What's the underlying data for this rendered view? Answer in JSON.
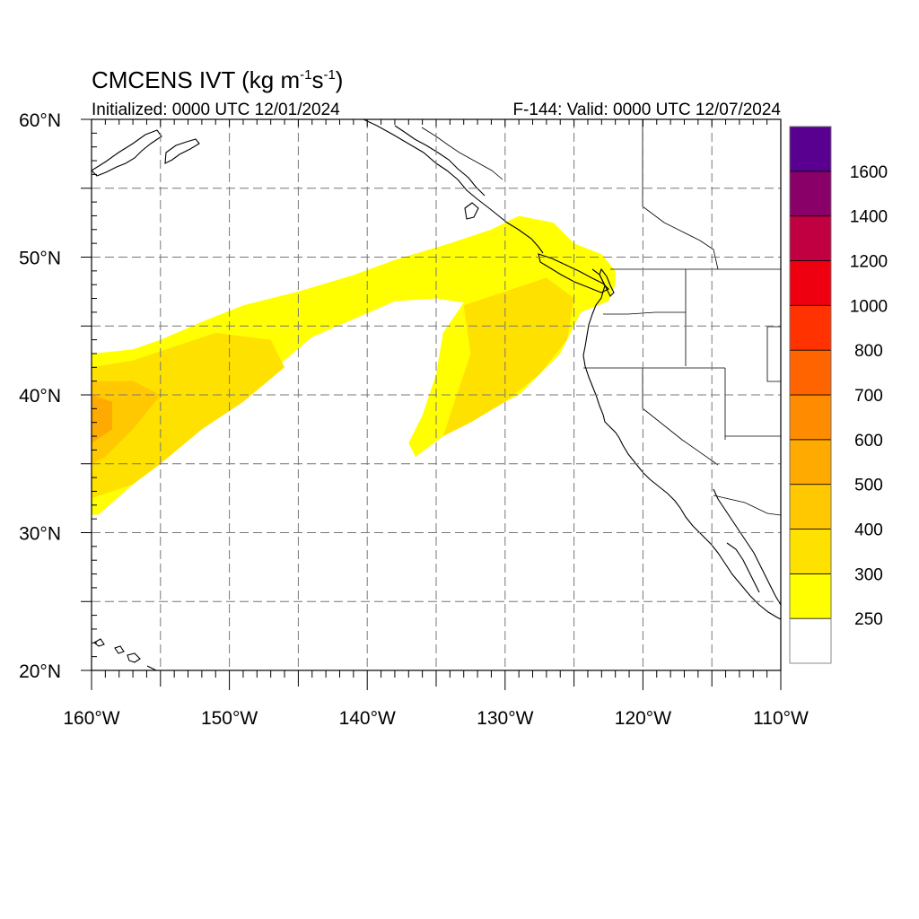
{
  "title": {
    "main": "CMCENS IVT (kg m",
    "sup1": "-1",
    "mid": "s",
    "sup2": "-1",
    "close": ")"
  },
  "subtitle_left": "Initialized: 0000 UTC 12/01/2024",
  "subtitle_right": "F-144: Valid: 0000 UTC 12/07/2024",
  "map": {
    "lon_range": [
      -160,
      -110
    ],
    "lat_range": [
      20,
      60
    ],
    "lon_ticks": [
      {
        "value": -160,
        "label": "160°W"
      },
      {
        "value": -150,
        "label": "150°W"
      },
      {
        "value": -140,
        "label": "140°W"
      },
      {
        "value": -130,
        "label": "130°W"
      },
      {
        "value": -120,
        "label": "120°W"
      },
      {
        "value": -110,
        "label": "110°W"
      }
    ],
    "lat_ticks": [
      {
        "value": 60,
        "label": "60°N"
      },
      {
        "value": 50,
        "label": "50°N"
      },
      {
        "value": 40,
        "label": "40°N"
      },
      {
        "value": 30,
        "label": "30°N"
      },
      {
        "value": 20,
        "label": "20°N"
      }
    ],
    "grid_spacing_deg": 5,
    "grid_style": "dashed"
  },
  "colorbar": {
    "labels": [
      "1600",
      "1400",
      "1200",
      "1000",
      "800",
      "700",
      "600",
      "500",
      "400",
      "300",
      "250"
    ],
    "levels": [
      250,
      300,
      400,
      500,
      600,
      700,
      800,
      1000,
      1200,
      1400,
      1600
    ],
    "colors_bottom_to_top": [
      "#ffffff",
      "#ffff00",
      "#ffe100",
      "#ffc800",
      "#ffaa00",
      "#ff8c00",
      "#ff6400",
      "#ff3200",
      "#ee0010",
      "#c00040",
      "#880068",
      "#5a0090"
    ]
  },
  "ivt_field": {
    "units": "kg m-1 s-1",
    "river_pacific": {
      "level_250": [
        [
          -160,
          43
        ],
        [
          -157,
          43.3
        ],
        [
          -155,
          44
        ],
        [
          -152,
          45.3
        ],
        [
          -149,
          46.5
        ],
        [
          -145,
          47.5
        ],
        [
          -141,
          48.7
        ],
        [
          -138,
          49.8
        ],
        [
          -134,
          51
        ],
        [
          -131,
          52
        ],
        [
          -129,
          53
        ],
        [
          -126.5,
          52.5
        ],
        [
          -125,
          51
        ],
        [
          -123,
          50.2
        ],
        [
          -122,
          49
        ],
        [
          -122,
          48
        ],
        [
          -122.5,
          46.8
        ],
        [
          -124.5,
          46
        ],
        [
          -125,
          45
        ],
        [
          -126,
          43
        ],
        [
          -129,
          40
        ],
        [
          -132.5,
          38.3
        ],
        [
          -134.5,
          37
        ],
        [
          -136.5,
          35.5
        ],
        [
          -137,
          36.5
        ],
        [
          -136,
          38.5
        ],
        [
          -135,
          41.5
        ],
        [
          -134.5,
          44.5
        ],
        [
          -133,
          46.7
        ],
        [
          -135,
          47
        ],
        [
          -138,
          46.8
        ],
        [
          -141,
          45.5
        ],
        [
          -144,
          44.2
        ],
        [
          -146,
          42.5
        ],
        [
          -149,
          40
        ],
        [
          -152,
          38
        ],
        [
          -155,
          35.5
        ],
        [
          -157,
          33.5
        ],
        [
          -159.5,
          31.3
        ],
        [
          -160,
          31.3
        ]
      ],
      "level_300": [
        [
          -160,
          42
        ],
        [
          -157,
          42.5
        ],
        [
          -154,
          43.5
        ],
        [
          -151,
          44.5
        ],
        [
          -147,
          44
        ],
        [
          -146,
          42
        ],
        [
          -149,
          39.5
        ],
        [
          -152,
          37.5
        ],
        [
          -155,
          35
        ],
        [
          -157,
          33.5
        ],
        [
          -160,
          32.5
        ]
      ],
      "level_300_b": [
        [
          -133,
          46.5
        ],
        [
          -130,
          47.5
        ],
        [
          -127,
          48.5
        ],
        [
          -125,
          47
        ],
        [
          -125.5,
          44
        ],
        [
          -127.5,
          41.5
        ],
        [
          -130,
          39.5
        ],
        [
          -132.5,
          38
        ],
        [
          -134.5,
          37
        ],
        [
          -133.5,
          40
        ],
        [
          -132.5,
          43
        ]
      ],
      "level_400": [
        [
          -160,
          41
        ],
        [
          -157,
          41
        ],
        [
          -155,
          40
        ],
        [
          -157,
          37.5
        ],
        [
          -159,
          35.5
        ],
        [
          -160,
          35
        ]
      ],
      "level_500": [
        [
          -160,
          40
        ],
        [
          -158.5,
          39.5
        ],
        [
          -158.5,
          37.5
        ],
        [
          -160,
          36.5
        ]
      ]
    }
  }
}
